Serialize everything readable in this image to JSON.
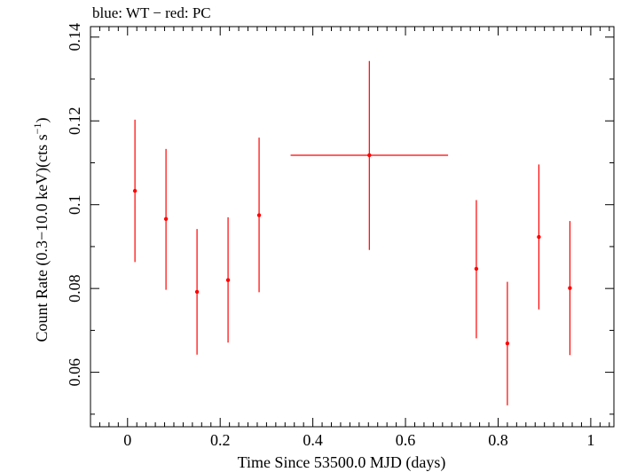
{
  "chart_data": {
    "type": "scatter",
    "title": "blue: WT − red: PC",
    "xlabel": "Time Since 53500.0 MJD (days)",
    "ylabel_main": "Count Rate (0.3−10.0 keV)(cts s",
    "ylabel_sup": "−1",
    "ylabel_end": ")",
    "xlim": [
      -0.08,
      1.05
    ],
    "ylim": [
      0.047,
      0.1425
    ],
    "x_ticks": [
      {
        "value": 0,
        "label": "0"
      },
      {
        "value": 0.2,
        "label": "0.2"
      },
      {
        "value": 0.4,
        "label": "0.4"
      },
      {
        "value": 0.6,
        "label": "0.6"
      },
      {
        "value": 0.8,
        "label": "0.8"
      },
      {
        "value": 1,
        "label": "1"
      }
    ],
    "y_ticks": [
      {
        "value": 0.06,
        "label": "0.06"
      },
      {
        "value": 0.08,
        "label": "0.08"
      },
      {
        "value": 0.1,
        "label": "0.1"
      },
      {
        "value": 0.12,
        "label": "0.12"
      },
      {
        "value": 0.14,
        "label": "0.14"
      }
    ],
    "grid": false,
    "series": [
      {
        "color": "#ff0000",
        "points": [
          {
            "x": 0.016,
            "y": 0.1033,
            "xerr": 0.0,
            "ylo": 0.0863,
            "yhi": 0.1203
          },
          {
            "x": 0.083,
            "y": 0.0966,
            "xerr": 0.0,
            "ylo": 0.0797,
            "yhi": 0.1133
          },
          {
            "x": 0.15,
            "y": 0.0792,
            "xerr": 0.0,
            "ylo": 0.0642,
            "yhi": 0.0942
          },
          {
            "x": 0.217,
            "y": 0.082,
            "xerr": 0.0,
            "ylo": 0.0671,
            "yhi": 0.097
          },
          {
            "x": 0.284,
            "y": 0.0975,
            "xerr": 0.0,
            "ylo": 0.0791,
            "yhi": 0.116
          },
          {
            "x": 0.522,
            "y": 0.1118,
            "xerr": 0.17,
            "ylo": 0.0892,
            "yhi": 0.1343
          },
          {
            "x": 0.753,
            "y": 0.0847,
            "xerr": 0.0,
            "ylo": 0.0681,
            "yhi": 0.1011
          },
          {
            "x": 0.82,
            "y": 0.0669,
            "xerr": 0.0,
            "ylo": 0.0521,
            "yhi": 0.0816
          },
          {
            "x": 0.888,
            "y": 0.0923,
            "xerr": 0.0,
            "ylo": 0.075,
            "yhi": 0.1096
          },
          {
            "x": 0.955,
            "y": 0.0801,
            "xerr": 0.0,
            "ylo": 0.0641,
            "yhi": 0.0961
          }
        ]
      }
    ]
  }
}
